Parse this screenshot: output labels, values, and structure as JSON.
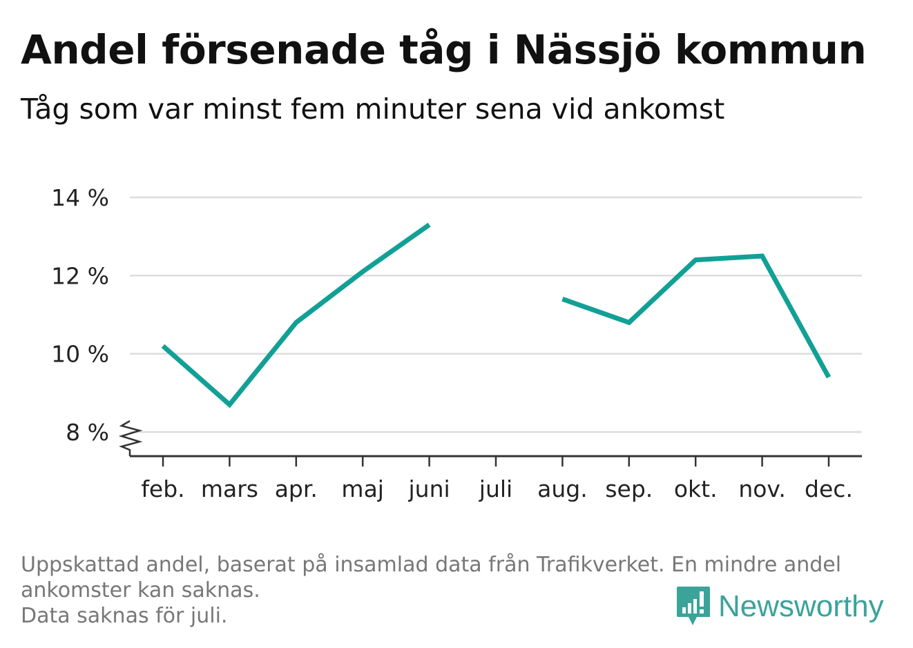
{
  "title": "Andel försenade tåg i Nässjö kommun",
  "subtitle": "Tåg som var minst fem minuter sena vid ankomst",
  "footnote": {
    "line1": "Uppskattad andel, baserat på insamlad data från Trafikverket. En mindre andel",
    "line2": "ankomster kan saknas.",
    "line3": "Data saknas för juli."
  },
  "brand": {
    "name": "Newsworthy",
    "icon": "newsworthy-logo-icon",
    "color": "#3aa39a"
  },
  "colors": {
    "line": "#12a096",
    "grid": "#dddddd",
    "axis": "#333333"
  },
  "chart_data": {
    "type": "line",
    "title": "Andel försenade tåg i Nässjö kommun",
    "subtitle": "Tåg som var minst fem minuter sena vid ankomst",
    "xlabel": "",
    "ylabel": "",
    "categories": [
      "feb.",
      "mars",
      "apr.",
      "maj",
      "juni",
      "juli",
      "aug.",
      "sep.",
      "okt.",
      "nov.",
      "dec."
    ],
    "series": [
      {
        "values": [
          10.2,
          8.7,
          10.8,
          12.1,
          13.3,
          null,
          11.4,
          10.8,
          12.4,
          12.5,
          9.4
        ]
      }
    ],
    "ylim": [
      8,
      14
    ],
    "yticks": [
      8,
      10,
      12,
      14
    ],
    "ytick_labels": [
      "8 %",
      "10 %",
      "12 %",
      "14 %"
    ],
    "axis_break": true,
    "grid": true,
    "legend": "none"
  }
}
